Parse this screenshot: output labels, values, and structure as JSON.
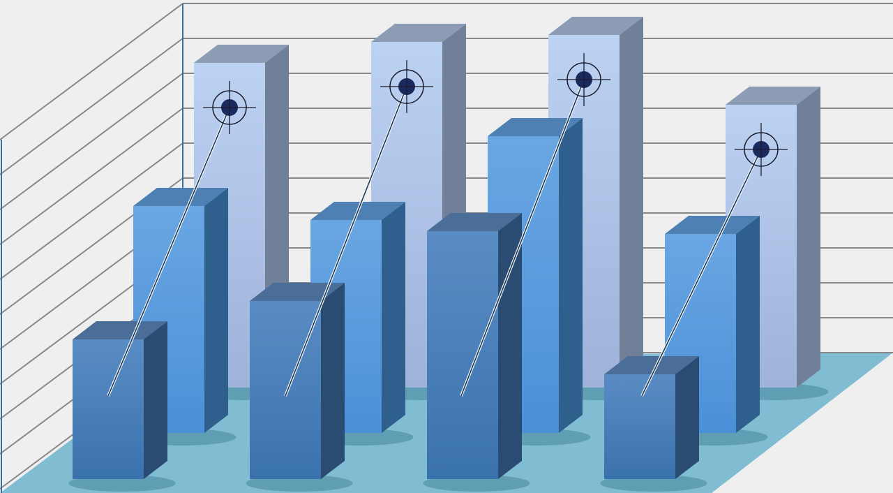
{
  "chart_data": {
    "type": "bar",
    "style": "3d-clustered",
    "title": "",
    "xlabel": "",
    "ylabel": "",
    "grid": true,
    "categories": [
      "",
      "",
      "",
      ""
    ],
    "ylim": [
      0,
      10
    ],
    "series": [
      {
        "values": [
          9.3,
          9.9,
          10.1,
          8.1
        ],
        "color": "#b6cdee"
      },
      {
        "values": [
          6.5,
          6.1,
          8.5,
          5.7
        ],
        "color": "#5a9ee0"
      },
      {
        "values": [
          4.0,
          5.1,
          7.1,
          3.0
        ],
        "color": "#4a80b8"
      }
    ],
    "markers": {
      "type": "crosshair-target",
      "on_series": 0,
      "color": "#1a2a5e"
    },
    "colors": {
      "background": "#efefef",
      "floor": "#80bcd2",
      "grid": "#888888",
      "wall_edge": "#3a6ea5"
    }
  }
}
